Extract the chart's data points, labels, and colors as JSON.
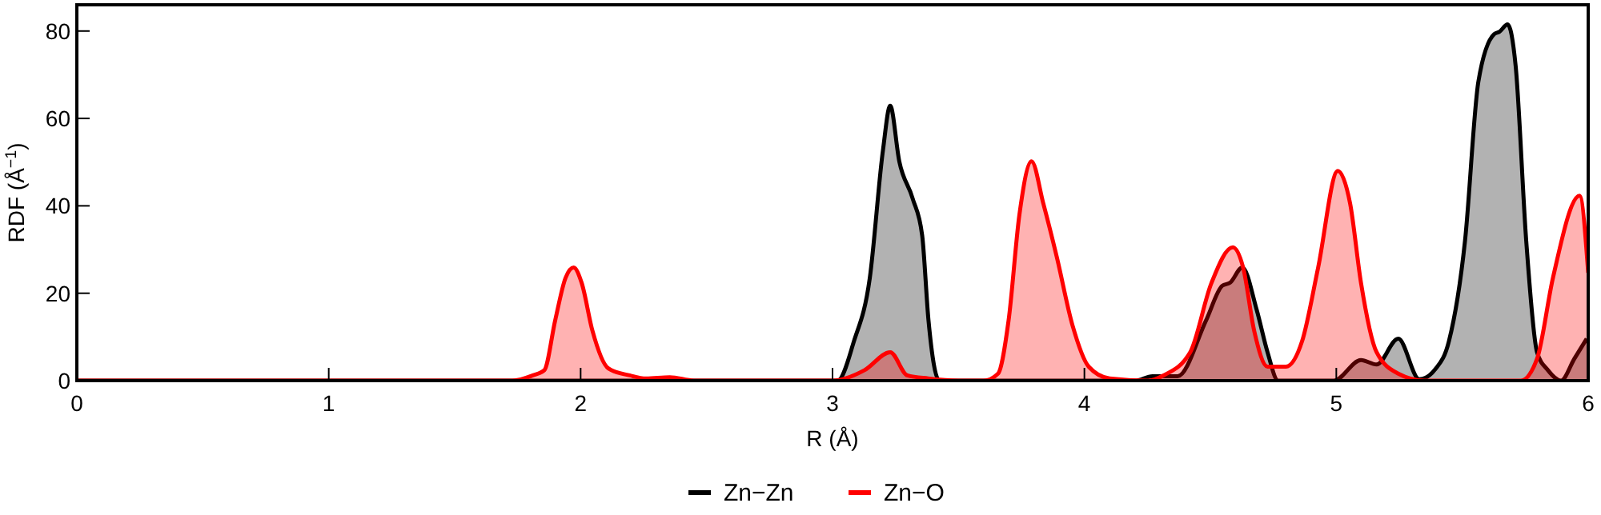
{
  "chart_data": {
    "type": "area",
    "xlabel": "R (Å)",
    "ylabel": "RDF (Å$^{−1}$)",
    "xlim": [
      0,
      6
    ],
    "xticks": [
      0,
      1,
      2,
      3,
      4,
      5,
      6
    ],
    "ylim": [
      0,
      86
    ],
    "yticks": [
      0,
      20,
      40,
      60,
      80
    ],
    "grid": false,
    "legend": "bottom",
    "series": [
      {
        "name": "Zn−Zn",
        "color": "#000000",
        "x": [
          0,
          3.02,
          3.085,
          3.148,
          3.2,
          3.229,
          3.265,
          3.318,
          3.356,
          3.381,
          3.424,
          4.2,
          4.27,
          4.37,
          4.483,
          4.547,
          4.578,
          4.627,
          4.684,
          4.727,
          4.769,
          4.99,
          5.098,
          5.16,
          5.246,
          5.33,
          5.394,
          5.447,
          5.511,
          5.564,
          5.627,
          5.647,
          5.68,
          5.712,
          5.754,
          5.797,
          5.84,
          5.892,
          5.945,
          5.994
        ],
        "values": [
          0,
          0,
          9,
          23.5,
          52.6,
          62.9,
          50.2,
          41.7,
          33.2,
          13.8,
          0,
          0,
          1,
          1,
          13.8,
          21.7,
          22.4,
          25.9,
          16.2,
          6.5,
          0,
          0,
          4.7,
          3.7,
          9.6,
          0.3,
          2.7,
          9,
          32,
          68.4,
          79.3,
          79.8,
          81.5,
          72,
          32,
          6.5,
          2.4,
          0,
          5,
          9.6
        ]
      },
      {
        "name": "Zn−O",
        "color": "#ff0000",
        "x": [
          0,
          1.729,
          1.81,
          1.856,
          1.899,
          1.94,
          1.972,
          2.004,
          2.047,
          2.11,
          2.195,
          2.26,
          2.354,
          2.45,
          3.0,
          3.127,
          3.229,
          3.297,
          3.38,
          3.5,
          3.6,
          3.657,
          3.699,
          3.742,
          3.79,
          3.837,
          3.89,
          3.953,
          4.017,
          4.1,
          4.25,
          4.314,
          4.42,
          4.504,
          4.589,
          4.63,
          4.674,
          4.727,
          4.8,
          4.864,
          4.928,
          5.006,
          5.055,
          5.098,
          5.16,
          5.246,
          5.35,
          5.733,
          5.797,
          5.86,
          5.966,
          6.0
        ],
        "values": [
          0,
          0,
          1.2,
          2.4,
          13.8,
          23.5,
          25.9,
          22.4,
          11.4,
          2.8,
          1.2,
          0.5,
          0.8,
          0,
          0,
          2.4,
          6.5,
          1.2,
          0.5,
          0,
          0,
          1.6,
          13.8,
          38,
          50.2,
          40.5,
          28.4,
          12.6,
          3.2,
          0.5,
          0,
          1.2,
          6.5,
          22.3,
          30.5,
          25.9,
          11.4,
          3.2,
          3.2,
          9,
          25.9,
          48,
          40.5,
          22.4,
          6.5,
          1.6,
          0,
          0,
          5,
          23.5,
          42.3,
          24.7
        ]
      }
    ]
  }
}
